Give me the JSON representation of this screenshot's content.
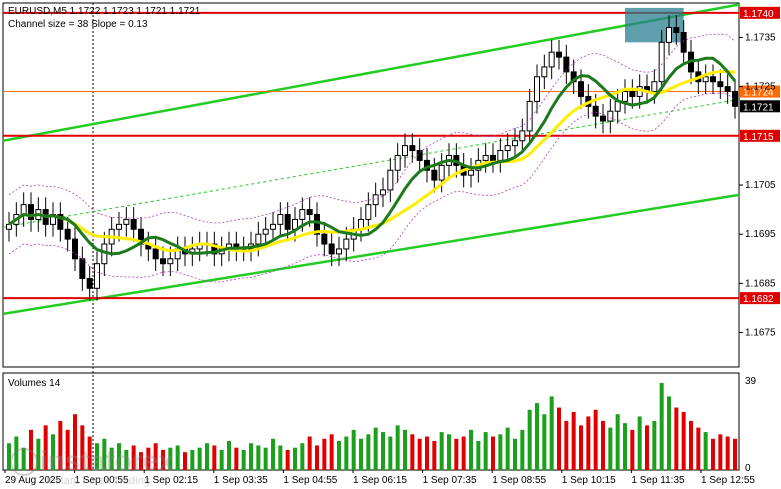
{
  "header": {
    "symbol_line": "EURUSD,M5  1.1722 1.1723 1.1721 1.1721",
    "channel_line": "Channel size = 38 Slope = 0.13",
    "volumes_label": "Volumes 14"
  },
  "watermark": {
    "brand": "instaforex",
    "tagline": "Instant Forex Trading"
  },
  "chart_data": {
    "type": "candlestick",
    "symbol": "EURUSD",
    "timeframe": "M5",
    "ylim": [
      1.1668,
      1.1742
    ],
    "y_ticks": [
      "1.1735",
      "1.1725",
      "1.1705",
      "1.1695",
      "1.1685",
      "1.1675"
    ],
    "x_ticks": [
      "29 Aug 2025",
      "1 Sep 00:55",
      "1 Sep 02:15",
      "1 Sep 03:35",
      "1 Sep 04:55",
      "1 Sep 06:15",
      "1 Sep 07:35",
      "1 Sep 08:55",
      "1 Sep 10:15",
      "1 Sep 11:35",
      "1 Sep 12:55"
    ],
    "levels": [
      {
        "value": 1.174,
        "label": "1.1740",
        "color": "#e00000"
      },
      {
        "value": 1.1715,
        "label": "1.1715",
        "color": "#e00000"
      },
      {
        "value": 1.1682,
        "label": "1.1682",
        "color": "#e00000"
      }
    ],
    "level_orange": {
      "value": 1.1724,
      "label": "1.1724",
      "color": "#ff6a00"
    },
    "current_price": {
      "value": 1.1721,
      "label": "1.1721"
    },
    "channel": {
      "upper": [
        [
          0,
          1.1714
        ],
        [
          1,
          1.17417
        ]
      ],
      "lower": [
        [
          0,
          1.16788
        ],
        [
          1,
          1.1703
        ]
      ],
      "mid": [
        [
          0,
          1.16964
        ],
        [
          1,
          1.17224
        ]
      ],
      "color": "#22cc22"
    },
    "ohlc_close": [
      1.1697,
      1.1699,
      1.1701,
      1.1698,
      1.17,
      1.1697,
      1.1699,
      1.1696,
      1.1694,
      1.169,
      1.1686,
      1.1684,
      1.1689,
      1.1693,
      1.1696,
      1.1697,
      1.1698,
      1.1696,
      1.1693,
      1.1692,
      1.169,
      1.1689,
      1.169,
      1.1692,
      1.1691,
      1.1692,
      1.1693,
      1.1693,
      1.1691,
      1.1692,
      1.1693,
      1.1692,
      1.1692,
      1.1693,
      1.1695,
      1.1696,
      1.1697,
      1.1699,
      1.1696,
      1.1698,
      1.17,
      1.1699,
      1.1695,
      1.1693,
      1.1691,
      1.1692,
      1.1694,
      1.1696,
      1.1698,
      1.1701,
      1.1703,
      1.1704,
      1.1708,
      1.1711,
      1.1713,
      1.1712,
      1.171,
      1.1708,
      1.1706,
      1.1709,
      1.1711,
      1.1709,
      1.1707,
      1.1708,
      1.171,
      1.1711,
      1.171,
      1.1712,
      1.1713,
      1.1714,
      1.1716,
      1.1722,
      1.1727,
      1.1729,
      1.1732,
      1.1731,
      1.1728,
      1.1726,
      1.1723,
      1.1721,
      1.1719,
      1.1718,
      1.172,
      1.1722,
      1.1724,
      1.1723,
      1.1725,
      1.1724,
      1.1726,
      1.1734,
      1.1737,
      1.1736,
      1.1732,
      1.1728,
      1.1726,
      1.1727,
      1.1726,
      1.1725,
      1.1724,
      1.1721
    ],
    "sma_yellow_color": "#ffee00",
    "sma_green_color": "#1c7a1c",
    "volume_ylim": [
      0,
      39
    ],
    "volume_ticks": [
      "39",
      "0"
    ],
    "volumes": [
      12,
      15,
      10,
      18,
      14,
      20,
      16,
      22,
      18,
      25,
      20,
      15,
      12,
      14,
      10,
      12,
      9,
      11,
      8,
      10,
      12,
      9,
      10,
      11,
      8,
      9,
      10,
      12,
      11,
      9,
      13,
      10,
      9,
      12,
      11,
      10,
      14,
      11,
      9,
      10,
      12,
      15,
      11,
      14,
      16,
      13,
      15,
      18,
      14,
      16,
      19,
      17,
      15,
      20,
      18,
      16,
      14,
      15,
      13,
      17,
      16,
      14,
      15,
      18,
      13,
      17,
      15,
      16,
      19,
      14,
      18,
      27,
      30,
      25,
      33,
      28,
      22,
      26,
      20,
      24,
      27,
      22,
      19,
      25,
      21,
      18,
      24,
      20,
      22,
      39,
      33,
      28,
      26,
      22,
      19,
      17,
      14,
      16,
      15,
      14
    ],
    "annotation_box": {
      "color": "#2a7f8f"
    }
  }
}
